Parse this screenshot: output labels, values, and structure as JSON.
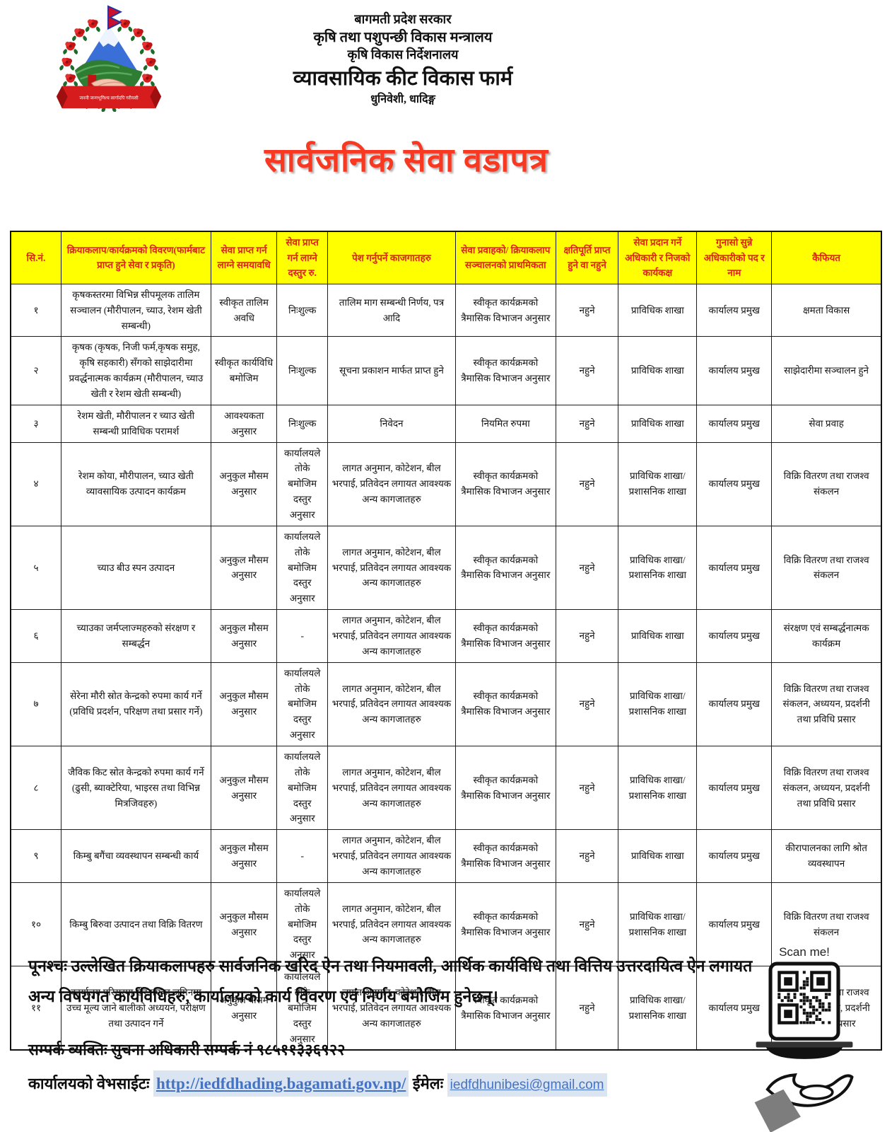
{
  "emblem": {
    "motto": "जननी जन्मभूमिश्च स्वर्गादपि गरीयसी"
  },
  "header": {
    "line1": "बागमती प्रदेश सरकार",
    "line2": "कृषि तथा पशुपन्छी विकास मन्त्रालय",
    "line3": "कृषि विकास निर्देशनालय",
    "org_name": "व्यावसायिक कीट विकास फार्म",
    "location": "धुनिवेशी, धादिङ्ग"
  },
  "title": "सार्वजनिक सेवा वडापत्र",
  "table": {
    "headers": [
      "सि.नं.",
      "क्रियाकलाप/कार्यक्रमको विवरण(फार्मबाट प्राप्त हुने सेवा र प्रकृति)",
      "सेवा प्राप्त गर्न लाग्ने समयावधि",
      "सेवा प्राप्त गर्न लाग्ने दस्तुर रु.",
      "पेश गर्नुपर्ने काजगातहरु",
      "सेवा प्रवाहको/ क्रियाकलाप सञ्चालनको प्राथमिकता",
      "क्षतिपूर्ति प्राप्त हुने वा नहुने",
      "सेवा प्रदान गर्ने अधिकारी र निजको कार्यकक्ष",
      "गुनासो सुन्ने अधिकारीको पद र नाम",
      "कैफियत"
    ],
    "rows": [
      [
        "१",
        "कृषकस्तरमा विभिन्न सीपमूलक तालिम सञ्चालन (मौरीपालन, च्याउ, रेशम खेती सम्बन्धी)",
        "स्वीकृत तालिम अवधि",
        "निःशुल्क",
        "तालिम माग सम्बन्धी निर्णय, पत्र आदि",
        "स्वीकृत कार्यक्रमको त्रैमासिक विभाजन अनुसार",
        "नहुने",
        "प्राविधिक शाखा",
        "कार्यालय प्रमुख",
        "क्षमता विकास"
      ],
      [
        "२",
        "कृषक (कृषक, निजी फर्म,कृषक समुह, कृषि सहकारी) सँगको साझेदारीमा प्रवर्द्धनात्मक कार्यक्रम (मौरीपालन, च्याउ खेती र रेशम खेती सम्बन्धी)",
        "स्वीकृत कार्यविधि बमोजिम",
        "निःशुल्क",
        "सूचना प्रकाशन मार्फत प्राप्त हुने",
        "स्वीकृत कार्यक्रमको त्रैमासिक विभाजन अनुसार",
        "नहुने",
        "प्राविधिक शाखा",
        "कार्यालय प्रमुख",
        "साझेदारीमा सञ्चालन हुने"
      ],
      [
        "३",
        "रेशम खेती, मौरीपालन र च्याउ खेती सम्बन्धी प्राविधिक परामर्श",
        "आवश्यकता अनुसार",
        "निःशुल्क",
        "निवेदन",
        "नियमित रुपमा",
        "नहुने",
        "प्राविधिक शाखा",
        "कार्यालय प्रमुख",
        "सेवा प्रवाह"
      ],
      [
        "४",
        "रेशम कोया, मौरीपालन, च्याउ खेती व्यावसायिक उत्पादन कार्यक्रम",
        "अनुकुल मौसम अनुसार",
        "कार्यालयले तोके बमोजिम दस्तुर अनुसार",
        "लागत अनुमान, कोटेशन, बील भरपाई, प्रतिवेदन लगायत आवश्यक अन्य कागजातहरु",
        "स्वीकृत कार्यक्रमको त्रैमासिक विभाजन अनुसार",
        "नहुने",
        "प्राविधिक शाखा/प्रशासनिक शाखा",
        "कार्यालय प्रमुख",
        "विक्रि वितरण तथा राजश्व संकलन"
      ],
      [
        "५",
        "च्याउ बीउ स्पन उत्पादन",
        "अनुकुल मौसम अनुसार",
        "कार्यालयले तोके बमोजिम दस्तुर अनुसार",
        "लागत अनुमान, कोटेशन, बील भरपाई, प्रतिवेदन लगायत आवश्यक अन्य कागजातहरु",
        "स्वीकृत कार्यक्रमको त्रैमासिक विभाजन अनुसार",
        "नहुने",
        "प्राविधिक शाखा/प्रशासनिक शाखा",
        "कार्यालय प्रमुख",
        "विक्रि वितरण तथा राजश्व संकलन"
      ],
      [
        "६",
        "च्याउका जर्मप्लाज्महरुको संरक्षण र सम्बर्द्धन",
        "अनुकुल मौसम अनुसार",
        "-",
        "लागत अनुमान, कोटेशन, बील भरपाई, प्रतिवेदन लगायत आवश्यक अन्य कागजातहरु",
        "स्वीकृत कार्यक्रमको त्रैमासिक विभाजन अनुसार",
        "नहुने",
        "प्राविधिक शाखा",
        "कार्यालय प्रमुख",
        "संरक्षण एवं सम्बर्द्धनात्मक कार्यक्रम"
      ],
      [
        "७",
        "सेरेना मौरी स्रोत केन्द्रको रुपमा कार्य गर्ने (प्रविधि प्रदर्शन, परिक्षण तथा प्रसार गर्ने)",
        "अनुकुल मौसम अनुसार",
        "कार्यालयले तोके बमोजिम दस्तुर अनुसार",
        "लागत अनुमान, कोटेशन, बील भरपाई, प्रतिवेदन लगायत आवश्यक अन्य कागजातहरु",
        "स्वीकृत कार्यक्रमको त्रैमासिक विभाजन अनुसार",
        "नहुने",
        "प्राविधिक शाखा/प्रशासनिक शाखा",
        "कार्यालय प्रमुख",
        "विक्रि वितरण तथा राजश्व संकलन, अध्ययन, प्रदर्शनी तथा प्रविधि प्रसार"
      ],
      [
        "८",
        "जैविक किट स्रोत केन्द्रको रुपमा कार्य गर्ने (ढुसी, ब्याक्टेरिया, भाइरस तथा विभिन्न मित्रजिवहरु)",
        "अनुकुल मौसम अनुसार",
        "कार्यालयले तोके बमोजिम दस्तुर अनुसार",
        "लागत अनुमान, कोटेशन, बील भरपाई, प्रतिवेदन लगायत आवश्यक अन्य कागजातहरु",
        "स्वीकृत कार्यक्रमको त्रैमासिक विभाजन अनुसार",
        "नहुने",
        "प्राविधिक शाखा/प्रशासनिक शाखा",
        "कार्यालय प्रमुख",
        "विक्रि वितरण तथा राजश्व संकलन, अध्ययन, प्रदर्शनी तथा प्रविधि प्रसार"
      ],
      [
        "९",
        "किम्बु बगैंचा व्यवस्थापन सम्बन्धी कार्य",
        "अनुकुल मौसम अनुसार",
        "-",
        "लागत अनुमान, कोटेशन, बील भरपाई, प्रतिवेदन लगायत आवश्यक अन्य कागजातहरु",
        "स्वीकृत कार्यक्रमको त्रैमासिक विभाजन अनुसार",
        "नहुने",
        "प्राविधिक शाखा",
        "कार्यालय प्रमुख",
        "कीरापालनका लागि श्रोत व्यवस्थापन"
      ],
      [
        "१०",
        "किम्बु बिरुवा उत्पादन तथा विक्रि वितरण",
        "अनुकुल मौसम अनुसार",
        "कार्यालयले तोके बमोजिम दस्तुर अनुसार",
        "लागत अनुमान, कोटेशन, बील भरपाई, प्रतिवेदन लगायत आवश्यक अन्य कागजातहरु",
        "स्वीकृत कार्यक्रमको त्रैमासिक विभाजन अनुसार",
        "नहुने",
        "प्राविधिक शाखा/प्रशासनिक शाखा",
        "कार्यालय प्रमुख",
        "विक्रि वितरण तथा राजश्व संकलन"
      ],
      [
        "११",
        "कार्यालय परिसरमा खेर गएका जमिनमा उच्च मूल्य जाने बालीको अध्ययन, परीक्षण तथा उत्पादन गर्ने",
        "अनुकुल मौसम अनुसार",
        "कार्यालयले तोके बमोजिम दस्तुर अनुसार",
        "लागत अनुमान, कोटेशन, बील भरपाई, प्रतिवेदन लगायत आवश्यक अन्य कागजातहरु",
        "स्वीकृत कार्यक्रमको त्रैमासिक विभाजन अनुसार",
        "नहुने",
        "प्राविधिक शाखा/प्रशासनिक शाखा",
        "कार्यालय प्रमुख",
        "विक्रि वितरण तथा राजश्व संकलन, अध्ययन, प्रदर्शनी तथा प्रविधि प्रसार"
      ]
    ]
  },
  "footer": {
    "note": "पूनश्चः उल्लेखित क्रियाकलापहरु सार्वजनिक खरिद ऐन तथा नियमावली, आर्थिक कार्यविधि तथा वित्तिय उत्तरदायित्व ऐन लगायत अन्य विषयगत कार्यविधिहरु, कार्यालयको कार्य विवरण एवं निर्णय बमोजिम हुनेछन्।",
    "contact": "सम्पर्क व्यक्तिः सुचना अधिकारी सम्पर्क नं ९८५११३३६९२२",
    "website_label": "कार्यालयको वेभसाईटः",
    "website_url": "http://iedfdhading.bagamati.gov.np/",
    "email_label": "ईमेलः",
    "email": "iedfdhunibesi@gmail.com",
    "qr_label": "Scan me!"
  },
  "colors": {
    "title_red": "#f93822",
    "header_yellow": "#ffff00",
    "header_text_red": "#e01f1f",
    "link_blue": "#4472c4",
    "link_highlight": "#dbe5f1"
  }
}
